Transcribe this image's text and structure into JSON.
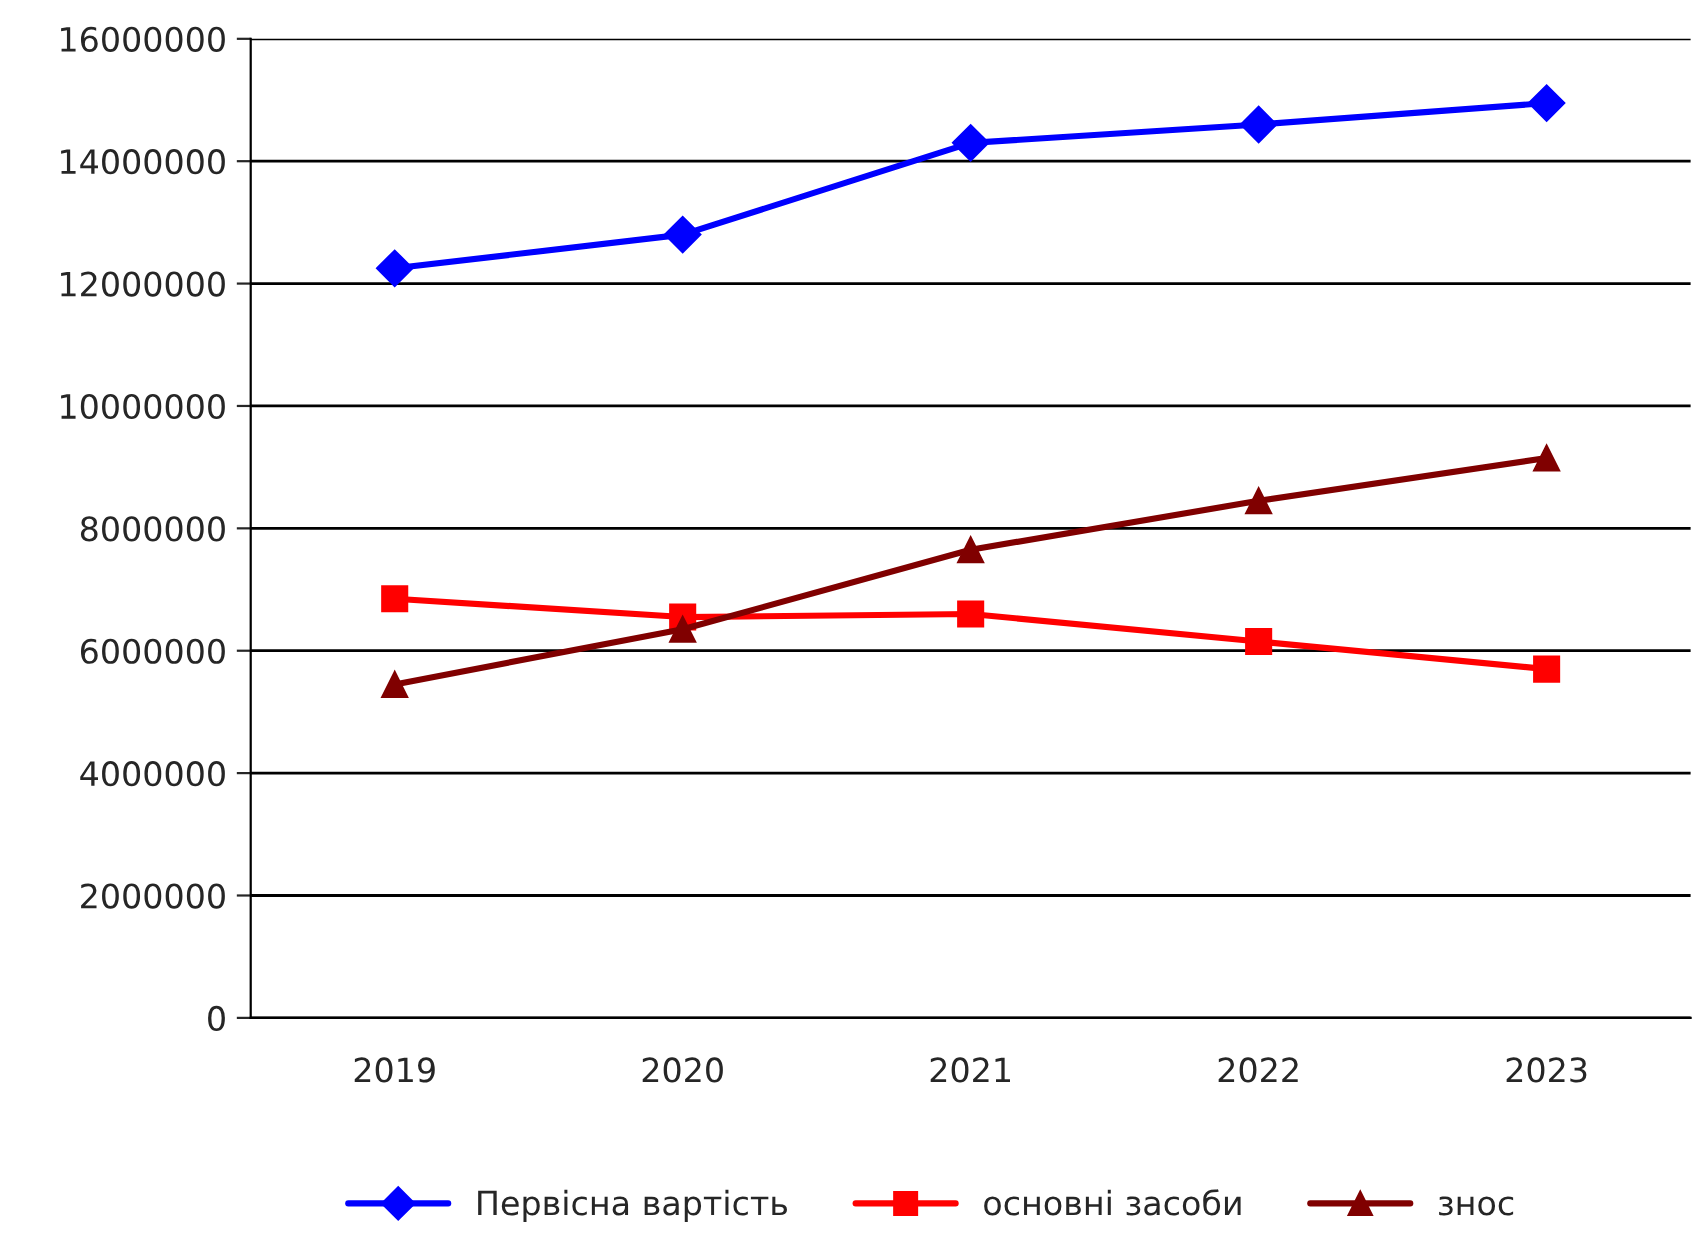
{
  "chart_data": {
    "type": "line",
    "categories": [
      "2019",
      "2020",
      "2021",
      "2022",
      "2023"
    ],
    "series": [
      {
        "name": "Первісна вартість",
        "color": "#0000ff",
        "marker": "diamond",
        "values": [
          12250000,
          12800000,
          14300000,
          14600000,
          14950000
        ]
      },
      {
        "name": "основні засоби",
        "color": "#ff0000",
        "marker": "square",
        "values": [
          6850000,
          6550000,
          6600000,
          6150000,
          5700000
        ]
      },
      {
        "name": "знос",
        "color": "#800000",
        "marker": "triangle",
        "values": [
          5450000,
          6350000,
          7650000,
          8450000,
          9150000
        ]
      }
    ],
    "ylim": [
      0,
      16000000
    ],
    "yticks": [
      0,
      2000000,
      4000000,
      6000000,
      8000000,
      10000000,
      12000000,
      14000000,
      16000000
    ],
    "grid": "y",
    "legend": "bottom",
    "line_style": "solid"
  }
}
